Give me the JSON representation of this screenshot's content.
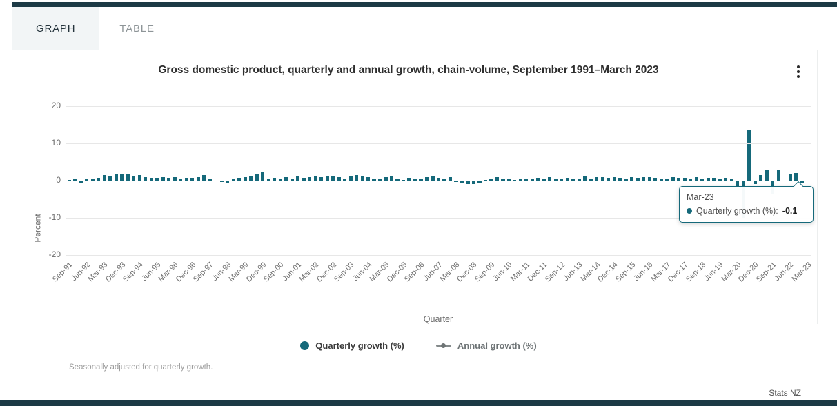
{
  "tabs": [
    {
      "label": "GRAPH",
      "active": true
    },
    {
      "label": "TABLE",
      "active": false
    }
  ],
  "chart": {
    "title": "Gross domestic product, quarterly and annual growth, chain-volume, September 1991–March 2023",
    "y_axis_title": "Percent",
    "x_axis_title": "Quarter",
    "footnote": "Seasonally adjusted for quarterly growth."
  },
  "legend": [
    {
      "label": "Quarterly growth (%)",
      "marker": "circle",
      "color": "#15697a"
    },
    {
      "label": "Annual growth (%)",
      "marker": "line-circle",
      "color": "#848a8b"
    }
  ],
  "tooltip": {
    "title": "Mar-23",
    "series_label": "Quarterly growth (%):",
    "value": "-0.1"
  },
  "attribution": "Stats NZ",
  "colors": {
    "accent_dark_bar": "#1c3a45",
    "series_teal": "#15697a",
    "annual_gray": "#848a8b",
    "gridline": "#e7e7e7"
  },
  "chart_data": {
    "type": "bar",
    "title": "Gross domestic product, quarterly and annual growth, chain-volume, September 1991–March 2023",
    "xlabel": "Quarter",
    "ylabel": "Percent",
    "ylim": [
      -20,
      20
    ],
    "yticks": [
      20,
      10,
      0,
      -10,
      -20
    ],
    "grid": true,
    "legend_position": "bottom",
    "x_tick_step": 3,
    "categories": [
      "Sep-91",
      "Dec-91",
      "Mar-92",
      "Jun-92",
      "Sep-92",
      "Dec-92",
      "Mar-93",
      "Jun-93",
      "Sep-93",
      "Dec-93",
      "Mar-94",
      "Jun-94",
      "Sep-94",
      "Dec-94",
      "Mar-95",
      "Jun-95",
      "Sep-95",
      "Dec-95",
      "Mar-96",
      "Jun-96",
      "Sep-96",
      "Dec-96",
      "Mar-97",
      "Jun-97",
      "Sep-97",
      "Dec-97",
      "Mar-98",
      "Jun-98",
      "Sep-98",
      "Dec-98",
      "Mar-99",
      "Jun-99",
      "Sep-99",
      "Dec-99",
      "Mar-00",
      "Jun-00",
      "Sep-00",
      "Dec-00",
      "Mar-01",
      "Jun-01",
      "Sep-01",
      "Dec-01",
      "Mar-02",
      "Jun-02",
      "Sep-02",
      "Dec-02",
      "Mar-03",
      "Jun-03",
      "Sep-03",
      "Dec-03",
      "Mar-04",
      "Jun-04",
      "Sep-04",
      "Dec-04",
      "Mar-05",
      "Jun-05",
      "Sep-05",
      "Dec-05",
      "Mar-06",
      "Jun-06",
      "Sep-06",
      "Dec-06",
      "Mar-07",
      "Jun-07",
      "Sep-07",
      "Dec-07",
      "Mar-08",
      "Jun-08",
      "Sep-08",
      "Dec-08",
      "Mar-09",
      "Jun-09",
      "Sep-09",
      "Dec-09",
      "Mar-10",
      "Jun-10",
      "Sep-10",
      "Dec-10",
      "Mar-11",
      "Jun-11",
      "Sep-11",
      "Dec-11",
      "Mar-12",
      "Jun-12",
      "Sep-12",
      "Dec-12",
      "Mar-13",
      "Jun-13",
      "Sep-13",
      "Dec-13",
      "Mar-14",
      "Jun-14",
      "Sep-14",
      "Dec-14",
      "Mar-15",
      "Jun-15",
      "Sep-15",
      "Dec-15",
      "Mar-16",
      "Jun-16",
      "Sep-16",
      "Dec-16",
      "Mar-17",
      "Jun-17",
      "Sep-17",
      "Dec-17",
      "Mar-18",
      "Jun-18",
      "Sep-18",
      "Dec-18",
      "Mar-19",
      "Jun-19",
      "Sep-19",
      "Dec-19",
      "Mar-20",
      "Jun-20",
      "Sep-20",
      "Dec-20",
      "Mar-21",
      "Jun-21",
      "Sep-21",
      "Dec-21",
      "Mar-22",
      "Jun-22",
      "Sep-22",
      "Dec-22",
      "Mar-23"
    ],
    "series": [
      {
        "name": "Quarterly growth (%)",
        "color": "#15697a",
        "visible": true,
        "values": [
          0.2,
          0.5,
          -0.6,
          0.5,
          0.3,
          0.7,
          1.5,
          1.2,
          1.6,
          1.8,
          1.7,
          1.3,
          1.5,
          0.9,
          0.8,
          0.7,
          1.0,
          0.8,
          0.9,
          0.6,
          0.8,
          0.7,
          0.9,
          1.4,
          0.4,
          -0.2,
          -0.4,
          -0.6,
          0.3,
          0.8,
          0.9,
          1.3,
          1.8,
          2.5,
          0.4,
          0.8,
          0.5,
          0.9,
          0.6,
          1.2,
          0.8,
          1.0,
          1.1,
          1.0,
          1.2,
          1.1,
          0.9,
          0.4,
          1.2,
          1.4,
          1.3,
          0.9,
          0.6,
          0.5,
          1.0,
          1.2,
          0.3,
          0.2,
          0.8,
          0.6,
          0.5,
          0.9,
          1.2,
          0.8,
          0.6,
          1.0,
          -0.3,
          -0.6,
          -0.9,
          -1.0,
          -0.8,
          0.2,
          0.3,
          0.9,
          0.6,
          0.3,
          0.2,
          0.5,
          0.6,
          0.4,
          0.7,
          0.5,
          1.0,
          0.4,
          0.3,
          0.8,
          0.5,
          0.4,
          1.1,
          0.4,
          1.0,
          0.9,
          0.8,
          0.9,
          0.8,
          0.6,
          0.9,
          0.8,
          1.0,
          0.9,
          0.8,
          0.5,
          0.6,
          0.9,
          0.7,
          0.7,
          0.6,
          1.0,
          0.5,
          0.8,
          0.7,
          0.3,
          0.8,
          0.5,
          -1.4,
          -10.0,
          13.5,
          -0.9,
          1.5,
          2.8,
          -3.7,
          3.0,
          -0.2,
          1.7,
          2.0,
          -0.7,
          -0.1
        ]
      },
      {
        "name": "Annual growth (%)",
        "color": "#848a8b",
        "visible": false,
        "values": []
      }
    ]
  }
}
